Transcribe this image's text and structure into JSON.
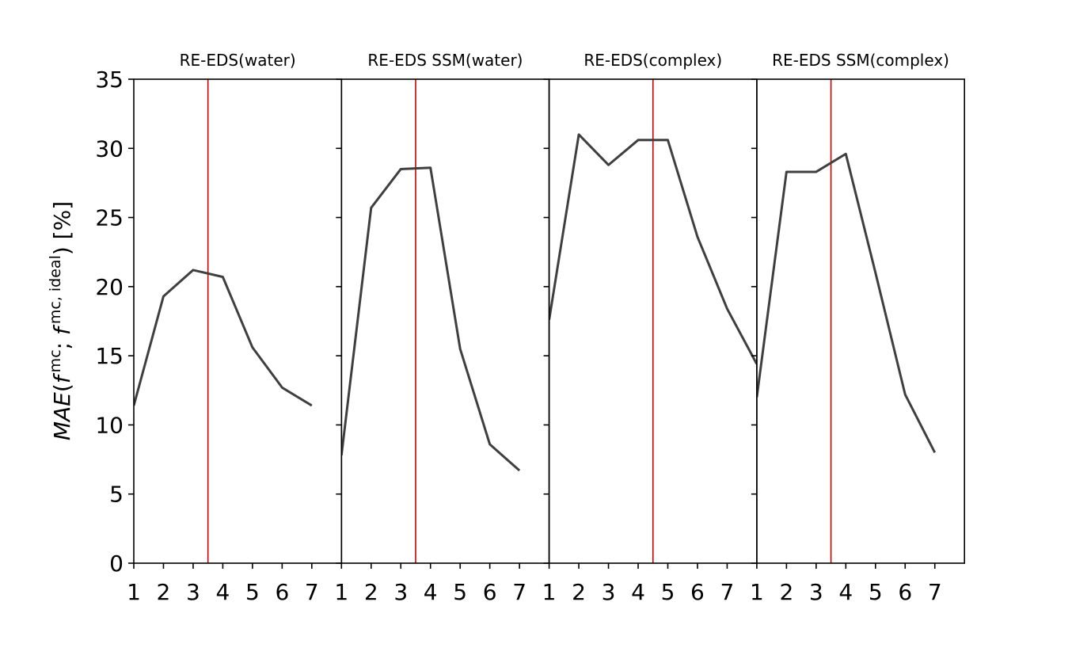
{
  "chart_data": {
    "type": "line",
    "ylabel": {
      "main": "MAE",
      "open": "(",
      "f1": "f",
      "sup1": "mc",
      "sep": "; ",
      "f2": "f",
      "sup2": "mc, ideal",
      "close": ") [%]"
    },
    "ylim": [
      0,
      35
    ],
    "yticks": [
      0,
      5,
      10,
      15,
      20,
      25,
      30,
      35
    ],
    "xlim": [
      1,
      8
    ],
    "xticks": [
      1,
      2,
      3,
      4,
      5,
      6,
      7
    ],
    "line_color": "#3f3f3f",
    "marker_color": "#cc0000",
    "panels": [
      {
        "title": "RE-EDS(water)",
        "x": [
          1,
          2,
          3,
          4,
          5,
          6,
          7
        ],
        "y": [
          11.4,
          19.3,
          21.2,
          20.7,
          15.6,
          12.7,
          11.4
        ],
        "vline": 3.5
      },
      {
        "title": "RE-EDS SSM(water)",
        "x": [
          1,
          2,
          3,
          4,
          5,
          6,
          7
        ],
        "y": [
          7.8,
          25.7,
          28.5,
          28.6,
          15.5,
          8.6,
          6.7
        ],
        "vline": 3.5
      },
      {
        "title": "RE-EDS(complex)",
        "x": [
          1,
          2,
          3,
          4,
          5,
          6,
          7,
          8
        ],
        "y": [
          17.6,
          31.0,
          28.8,
          30.6,
          30.6,
          23.6,
          18.4,
          14.4
        ],
        "vline": 4.5
      },
      {
        "title": "RE-EDS SSM(complex)",
        "x": [
          1,
          2,
          3,
          4,
          5,
          6,
          7
        ],
        "y": [
          12.0,
          28.3,
          28.3,
          29.6,
          21.0,
          12.2,
          8.0
        ],
        "vline": 3.5
      }
    ]
  }
}
